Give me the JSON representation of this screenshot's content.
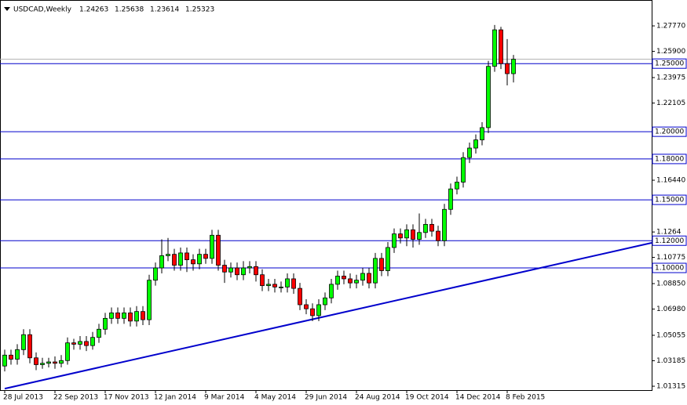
{
  "chart_data": {
    "type": "candlestick",
    "title": "USDCAD,Weekly",
    "categories": [
      "28 Jul 2013",
      null,
      null,
      null,
      null,
      null,
      null,
      null,
      "22 Sep 2013",
      null,
      null,
      null,
      null,
      null,
      null,
      null,
      "17 Nov 2013",
      null,
      null,
      null,
      null,
      null,
      null,
      null,
      "12 Jan 2014",
      null,
      null,
      null,
      null,
      null,
      null,
      null,
      "9 Mar 2014",
      null,
      null,
      null,
      null,
      null,
      null,
      null,
      "4 May 2014",
      null,
      null,
      null,
      null,
      null,
      null,
      null,
      "29 Jun 2014",
      null,
      null,
      null,
      null,
      null,
      null,
      null,
      "24 Aug 2014",
      null,
      null,
      null,
      null,
      null,
      null,
      null,
      "19 Oct 2014",
      null,
      null,
      null,
      null,
      null,
      null,
      null,
      "14 Dec 2014",
      null,
      null,
      null,
      null,
      null,
      null,
      null,
      "8 Feb 2015",
      null
    ],
    "open": [
      1.028,
      1.036,
      1.033,
      1.04,
      1.051,
      1.034,
      1.029,
      1.03,
      1.031,
      1.03,
      1.032,
      1.045,
      1.044,
      1.046,
      1.043,
      1.049,
      1.055,
      1.063,
      1.067,
      1.063,
      1.067,
      1.061,
      1.068,
      1.062,
      1.091,
      1.1,
      1.109,
      1.11,
      1.102,
      1.111,
      1.106,
      1.103,
      1.11,
      1.107,
      1.124,
      1.102,
      1.097,
      1.1,
      1.095,
      1.1,
      1.101,
      1.095,
      1.087,
      1.088,
      1.086,
      1.086,
      1.092,
      1.085,
      1.073,
      1.07,
      1.065,
      1.073,
      1.078,
      1.088,
      1.094,
      1.092,
      1.089,
      1.091,
      1.096,
      1.089,
      1.107,
      1.098,
      1.115,
      1.125,
      1.122,
      1.128,
      1.121,
      1.126,
      1.132,
      1.127,
      1.12,
      1.143,
      1.158,
      1.163,
      1.181,
      1.188,
      1.194,
      1.203,
      1.248,
      1.2748,
      1.25,
      1.24263
    ],
    "high": [
      1.04,
      1.04,
      1.044,
      1.055,
      1.055,
      1.038,
      1.034,
      1.034,
      1.035,
      1.036,
      1.049,
      1.048,
      1.05,
      1.05,
      1.053,
      1.059,
      1.067,
      1.071,
      1.071,
      1.071,
      1.071,
      1.072,
      1.072,
      1.095,
      1.104,
      1.121,
      1.122,
      1.114,
      1.115,
      1.115,
      1.11,
      1.114,
      1.114,
      1.128,
      1.128,
      1.106,
      1.104,
      1.104,
      1.105,
      1.105,
      1.105,
      1.099,
      1.092,
      1.092,
      1.09,
      1.096,
      1.096,
      1.089,
      1.077,
      1.074,
      1.077,
      1.082,
      1.092,
      1.098,
      1.098,
      1.096,
      1.095,
      1.1,
      1.1,
      1.111,
      1.111,
      1.119,
      1.129,
      1.129,
      1.132,
      1.132,
      1.14,
      1.136,
      1.136,
      1.131,
      1.147,
      1.162,
      1.167,
      1.185,
      1.192,
      1.198,
      1.207,
      1.252,
      1.2784,
      1.277,
      1.268,
      1.25638
    ],
    "low": [
      1.024,
      1.029,
      1.029,
      1.036,
      1.03,
      1.025,
      1.026,
      1.027,
      1.026,
      1.027,
      1.029,
      1.04,
      1.04,
      1.039,
      1.04,
      1.045,
      1.051,
      1.059,
      1.059,
      1.059,
      1.057,
      1.057,
      1.058,
      1.058,
      1.087,
      1.096,
      1.105,
      1.098,
      1.098,
      1.097,
      1.098,
      1.099,
      1.103,
      1.103,
      1.098,
      1.089,
      1.093,
      1.091,
      1.091,
      1.096,
      1.09,
      1.083,
      1.083,
      1.082,
      1.082,
      1.082,
      1.081,
      1.069,
      1.066,
      1.061,
      1.061,
      1.069,
      1.074,
      1.084,
      1.088,
      1.085,
      1.085,
      1.087,
      1.085,
      1.085,
      1.094,
      1.094,
      1.111,
      1.118,
      1.116,
      1.115,
      1.117,
      1.122,
      1.123,
      1.116,
      1.116,
      1.139,
      1.154,
      1.159,
      1.177,
      1.184,
      1.19,
      1.199,
      1.244,
      1.246,
      1.234,
      1.23614
    ],
    "close": [
      1.036,
      1.033,
      1.04,
      1.051,
      1.034,
      1.029,
      1.03,
      1.031,
      1.03,
      1.032,
      1.045,
      1.044,
      1.046,
      1.043,
      1.049,
      1.055,
      1.063,
      1.067,
      1.063,
      1.067,
      1.061,
      1.068,
      1.062,
      1.091,
      1.1,
      1.109,
      1.11,
      1.102,
      1.111,
      1.106,
      1.103,
      1.11,
      1.107,
      1.124,
      1.102,
      1.097,
      1.1,
      1.095,
      1.1,
      1.101,
      1.095,
      1.087,
      1.088,
      1.086,
      1.086,
      1.092,
      1.085,
      1.073,
      1.07,
      1.065,
      1.073,
      1.078,
      1.088,
      1.094,
      1.092,
      1.089,
      1.091,
      1.096,
      1.089,
      1.107,
      1.098,
      1.115,
      1.125,
      1.122,
      1.128,
      1.121,
      1.126,
      1.132,
      1.127,
      1.12,
      1.143,
      1.158,
      1.163,
      1.181,
      1.188,
      1.194,
      1.203,
      1.248,
      1.2748,
      1.25,
      1.24263,
      1.25323
    ],
    "up_color": "#00ff00",
    "down_color": "#ff0000",
    "ylim": [
      1.0103,
      1.2967
    ],
    "yticks": [
      {
        "value": 1.2777,
        "label": "1.27770"
      },
      {
        "value": 1.259,
        "label": "1.25900"
      },
      1.23975,
      1.22105,
      {
        "value": 1.1644,
        "label": "1.16440"
      },
      1.1264,
      1.10775,
      {
        "value": 1.0885,
        "label": "1.08850"
      },
      {
        "value": 1.0698,
        "label": "1.06980"
      },
      1.05055,
      1.03185,
      1.01315
    ],
    "levels": [
      {
        "value": 1.25,
        "label": "1.25000"
      },
      {
        "value": 1.2,
        "label": "1.20000"
      },
      {
        "value": 1.18,
        "label": "1.18000"
      },
      {
        "value": 1.15,
        "label": "1.15000"
      },
      {
        "value": 1.12,
        "label": "1.12000"
      },
      {
        "value": 1.1,
        "label": "1.10000"
      }
    ],
    "level_color": "#0000cc",
    "trendline": {
      "x": [
        0,
        103
      ],
      "values": [
        1.0114,
        1.1184
      ]
    }
  }
}
